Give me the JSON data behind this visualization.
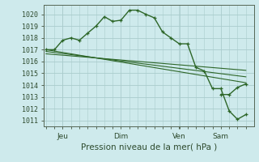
{
  "background_color": "#ceeaec",
  "grid_color": "#aacccc",
  "line_color": "#2d6628",
  "marker_color": "#2d6628",
  "xlabel": "Pression niveau de la mer( hPa )",
  "ylim": [
    1010.5,
    1020.8
  ],
  "yticks": [
    1011,
    1012,
    1013,
    1014,
    1015,
    1016,
    1017,
    1018,
    1019,
    1020
  ],
  "x_tick_labels": [
    "Jeu",
    "Dim",
    "Ven",
    "Sam"
  ],
  "x_tick_positions": [
    0.083,
    0.375,
    0.667,
    0.875
  ],
  "series": {
    "main": {
      "x": [
        0.0,
        0.042,
        0.083,
        0.125,
        0.167,
        0.208,
        0.25,
        0.292,
        0.333,
        0.375,
        0.417,
        0.458,
        0.5,
        0.542,
        0.583,
        0.625,
        0.667,
        0.708,
        0.75,
        0.792,
        0.833,
        0.875,
        0.917,
        0.958,
        1.0
      ],
      "y": [
        1017.0,
        1017.0,
        1017.8,
        1018.0,
        1017.8,
        1018.4,
        1019.0,
        1019.8,
        1019.4,
        1019.5,
        1020.35,
        1020.35,
        1020.0,
        1019.7,
        1018.5,
        1018.0,
        1017.5,
        1017.5,
        1015.5,
        1015.2,
        1013.7,
        1013.7,
        1011.8,
        1011.1,
        1011.5
      ]
    },
    "main2": {
      "x": [
        0.875,
        0.917,
        0.958,
        1.0
      ],
      "y": [
        1013.2,
        1013.2,
        1013.8,
        1014.1
      ]
    },
    "flat1": {
      "x": [
        0.0,
        1.0
      ],
      "y": [
        1017.0,
        1014.2
      ]
    },
    "flat2": {
      "x": [
        0.0,
        1.0
      ],
      "y": [
        1016.85,
        1014.7
      ]
    },
    "flat3": {
      "x": [
        0.0,
        1.0
      ],
      "y": [
        1016.65,
        1015.25
      ]
    }
  }
}
